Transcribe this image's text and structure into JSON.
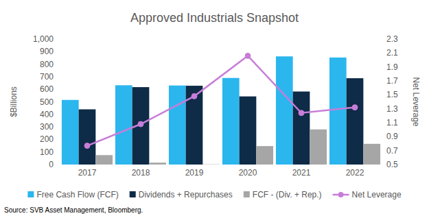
{
  "chart_data": {
    "type": "bar",
    "title": "Approved Industrials Snapshot",
    "ylabel": "$Billions",
    "y2label": "Net Leverage",
    "source": "Source: SVB Asset Management, Bloomberg.",
    "categories": [
      "2017",
      "2018",
      "2019",
      "2020",
      "2021",
      "2022"
    ],
    "series": [
      {
        "name": "Free Cash Flow (FCF)",
        "color": "#2BB6EE",
        "values": [
          515,
          632,
          630,
          690,
          862,
          853
        ]
      },
      {
        "name": "Dividends + Repurchases",
        "color": "#0E2B47",
        "values": [
          440,
          617,
          628,
          543,
          582,
          688
        ]
      },
      {
        "name": "FCF - (Div. + Rep.)",
        "color": "#A6A6A6",
        "values": [
          75,
          15,
          2,
          147,
          280,
          165
        ]
      },
      {
        "name": "Net Leverage",
        "type": "line",
        "axis": "y2",
        "color": "#C77DD8",
        "marker": "circle",
        "values": [
          0.77,
          1.08,
          1.48,
          2.06,
          1.24,
          1.32
        ]
      }
    ],
    "ylim": [
      0,
      1000
    ],
    "yticks": [
      0,
      100,
      200,
      300,
      400,
      500,
      600,
      700,
      800,
      900,
      {
        "value": 1000,
        "label": "1,000"
      }
    ],
    "y2lim": [
      0.5,
      2.3
    ],
    "y2ticks": [
      0.5,
      0.7,
      0.9,
      1.1,
      1.3,
      1.5,
      1.7,
      1.9,
      2.1,
      2.3
    ],
    "grid": false,
    "legend": "bottom"
  }
}
